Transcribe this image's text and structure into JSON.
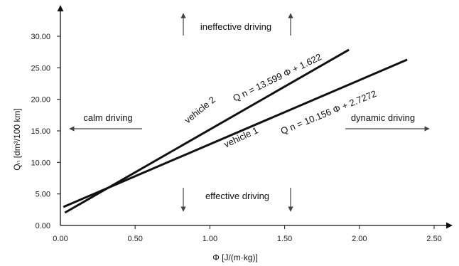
{
  "chart_data": {
    "type": "line",
    "xlabel": "Φ [J/(m·kg)]",
    "ylabel": "Qₙ [dm³/100 km]",
    "xlim": [
      0,
      2.75
    ],
    "ylim": [
      0,
      34
    ],
    "xticks": [
      "0.00",
      "0.50",
      "1.00",
      "1.50",
      "2.00",
      "2.50"
    ],
    "xtick_values": [
      0,
      0.5,
      1.0,
      1.5,
      2.0,
      2.5
    ],
    "yticks": [
      "0.00",
      "5.00",
      "10.00",
      "15.00",
      "20.00",
      "25.00",
      "30.00"
    ],
    "ytick_values": [
      0,
      5,
      10,
      15,
      20,
      25,
      30
    ],
    "grid": false,
    "series": [
      {
        "name": "vehicle 2",
        "equation": "Q n = 13.599 Φ + 1.622",
        "x": [
          0.03,
          1.93
        ],
        "y": [
          2.03,
          27.87
        ]
      },
      {
        "name": "vehicle 1",
        "equation": "Q n = 10.156 Φ + 2.7272",
        "x": [
          0.02,
          2.32
        ],
        "y": [
          2.93,
          26.29
        ]
      }
    ],
    "annotations": {
      "top": "ineffective driving",
      "bottom": "effective driving",
      "left": "calm driving",
      "right": "dynamic driving"
    }
  }
}
